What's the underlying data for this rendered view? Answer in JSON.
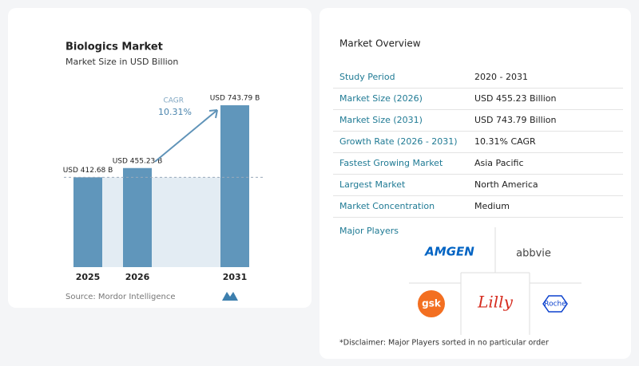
{
  "chart_data": {
    "type": "bar",
    "title": "Biologics Market",
    "subtitle": "Market Size in USD Billion",
    "categories": [
      "2025",
      "2026",
      "2031"
    ],
    "values": [
      412.68,
      455.23,
      743.79
    ],
    "value_labels": [
      "USD 412.68 B",
      "USD 455.23 B",
      "USD 743.79 B"
    ],
    "color": "#6096bb",
    "annotations": [
      "CAGR",
      "10.31%"
    ],
    "source": "Source: Mordor Intelligence"
  },
  "overview": {
    "title": "Market Overview",
    "rows": [
      [
        "Study Period",
        "2020 - 2031"
      ],
      [
        "Market Size (2026)",
        "USD 455.23 Billion"
      ],
      [
        "Market Size (2031)",
        "USD 743.79 Billion"
      ],
      [
        "Growth Rate (2026 - 2031)",
        "10.31% CAGR"
      ],
      [
        "Fastest Growing Market",
        "Asia Pacific"
      ],
      [
        "Largest Market",
        "North America"
      ],
      [
        "Market Concentration",
        "Medium"
      ]
    ],
    "players_title": "Major Players",
    "players": [
      "AMGEN",
      "abbvie",
      "gsk",
      "Lilly",
      "Roche"
    ],
    "disclaimer": "*Disclaimer: Major Players sorted in no particular order"
  }
}
